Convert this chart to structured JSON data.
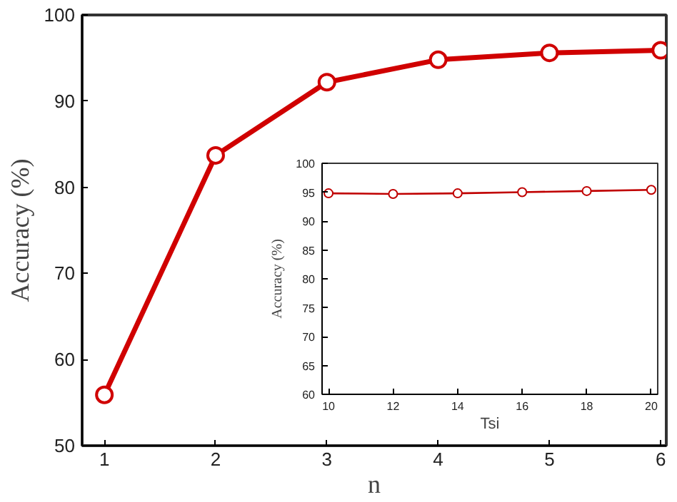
{
  "chart_data": [
    {
      "type": "line",
      "xlabel": "n",
      "ylabel": "Accuracy (%)",
      "x": [
        1,
        2,
        3,
        4,
        5,
        6
      ],
      "xlim": [
        0.8,
        6.05
      ],
      "xticks": [
        1,
        2,
        3,
        4,
        5,
        6
      ],
      "ylim": [
        50,
        100
      ],
      "yticks": [
        50,
        60,
        70,
        80,
        90,
        100
      ],
      "grid": false,
      "marker": "circle",
      "line_style": "solid",
      "series": [
        {
          "color": "#d00000",
          "values": [
            55.9,
            83.7,
            92.2,
            94.8,
            95.6,
            95.9
          ]
        }
      ]
    },
    {
      "type": "line",
      "xlabel": "Tsi",
      "ylabel": "Accuracy (%)",
      "x": [
        10,
        12,
        14,
        16,
        18,
        20
      ],
      "xlim": [
        9.8,
        20.2
      ],
      "xticks": [
        10,
        12,
        14,
        16,
        18,
        20
      ],
      "ylim": [
        60,
        100
      ],
      "yticks": [
        60,
        65,
        70,
        75,
        80,
        85,
        90,
        95,
        100
      ],
      "grid": false,
      "marker": "circle",
      "line_style": "solid",
      "series": [
        {
          "color": "#c00000",
          "values": [
            94.8,
            94.7,
            94.8,
            95.0,
            95.2,
            95.4
          ]
        }
      ]
    }
  ]
}
